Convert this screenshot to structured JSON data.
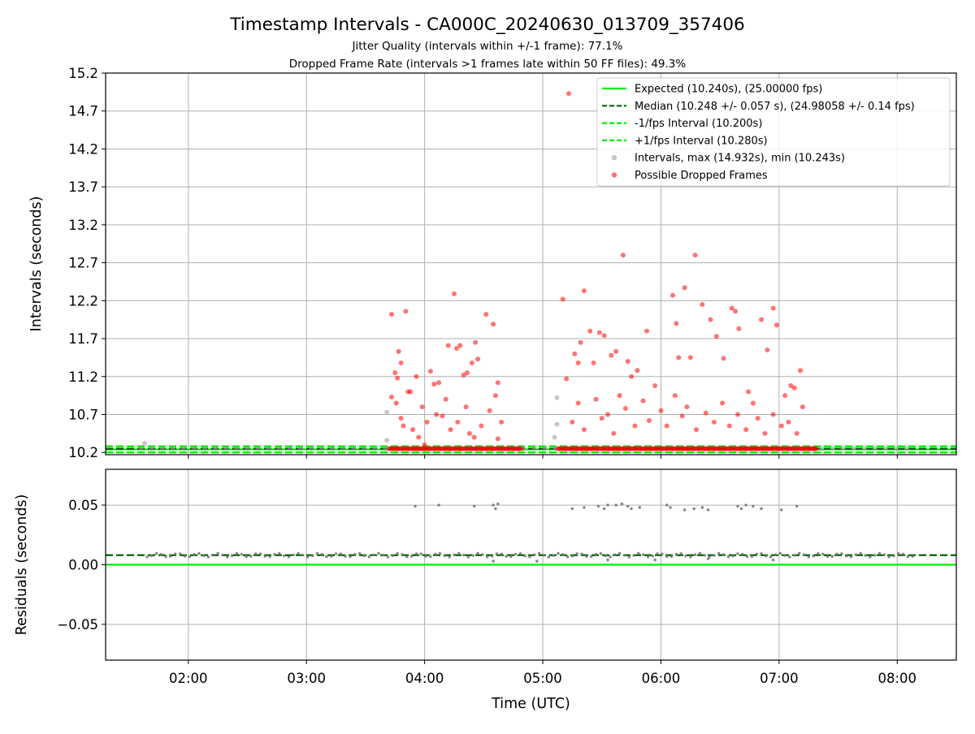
{
  "chart_data": [
    {
      "type": "scatter",
      "title": "Timestamp Intervals - CA000C_20240630_013709_357406",
      "subtitle_lines": [
        "Jitter Quality (intervals within +/-1 frame): 77.1%",
        "Dropped Frame Rate (intervals >1 frames late within 50 FF files): 49.3%"
      ],
      "xlabel": "",
      "ylabel": "Intervals (seconds)",
      "x_unit": "time (UTC, decimal hours)",
      "xlim": [
        1.3,
        8.5
      ],
      "ylim": [
        10.17,
        15.2
      ],
      "yticks": [
        10.2,
        10.7,
        11.2,
        11.7,
        12.2,
        12.7,
        13.2,
        13.7,
        14.2,
        14.7,
        15.2
      ],
      "ytick_labels": [
        "10.2",
        "10.7",
        "11.2",
        "11.7",
        "12.2",
        "12.7",
        "13.2",
        "13.7",
        "14.2",
        "14.7",
        "15.2"
      ],
      "xticks": [
        2,
        3,
        4,
        5,
        6,
        7,
        8
      ],
      "xtick_labels": [
        "02:00",
        "03:00",
        "04:00",
        "05:00",
        "06:00",
        "07:00",
        "08:00"
      ],
      "grid": true,
      "legend_position": "top-right",
      "reference_lines": [
        {
          "name": "Expected (10.240s), (25.00000 fps)",
          "value": 10.24,
          "color": "#00ee00",
          "style": "solid"
        },
        {
          "name": "Median (10.248 +/- 0.057 s), (24.98058 +/- 0.14 fps)",
          "value": 10.248,
          "color": "#006400",
          "style": "dashed"
        },
        {
          "name": "-1/fps Interval (10.200s)",
          "value": 10.2,
          "color": "#00ee00",
          "style": "dashed"
        },
        {
          "name": "+1/fps Interval (10.280s)",
          "value": 10.28,
          "color": "#00ee00",
          "style": "dashed"
        }
      ],
      "series": [
        {
          "name": "Intervals, max (14.932s), min (10.243s)",
          "color": "#999999",
          "baseline": {
            "value": 10.25,
            "x_range": [
              1.6,
              8.15
            ],
            "step": 0.09
          },
          "points": [
            [
              1.63,
              10.32
            ],
            [
              3.68,
              10.73
            ],
            [
              3.68,
              10.36
            ],
            [
              5.12,
              10.92
            ],
            [
              5.12,
              10.57
            ],
            [
              5.1,
              10.4
            ]
          ]
        },
        {
          "name": "Possible Dropped Frames",
          "color": "#ff0000",
          "bands": [
            [
              3.7,
              4.82
            ],
            [
              5.13,
              7.32
            ]
          ],
          "band_value": 10.25,
          "points": [
            [
              3.72,
              12.02
            ],
            [
              3.75,
              11.25
            ],
            [
              3.77,
              11.18
            ],
            [
              3.78,
              11.53
            ],
            [
              3.8,
              11.38
            ],
            [
              3.84,
              12.06
            ],
            [
              3.86,
              11.0
            ],
            [
              3.88,
              11.0
            ],
            [
              3.93,
              11.2
            ],
            [
              3.98,
              10.8
            ],
            [
              4.05,
              11.27
            ],
            [
              4.08,
              11.1
            ],
            [
              4.12,
              11.12
            ],
            [
              4.2,
              11.61
            ],
            [
              4.25,
              12.29
            ],
            [
              4.27,
              11.57
            ],
            [
              4.3,
              11.61
            ],
            [
              4.33,
              11.22
            ],
            [
              4.36,
              11.25
            ],
            [
              4.4,
              11.38
            ],
            [
              4.43,
              11.65
            ],
            [
              4.45,
              11.43
            ],
            [
              4.52,
              12.02
            ],
            [
              4.58,
              11.89
            ],
            [
              4.62,
              11.12
            ],
            [
              4.6,
              10.95
            ],
            [
              3.72,
              10.93
            ],
            [
              3.76,
              10.85
            ],
            [
              3.8,
              10.65
            ],
            [
              3.82,
              10.55
            ],
            [
              3.9,
              10.5
            ],
            [
              3.95,
              10.4
            ],
            [
              4.0,
              10.3
            ],
            [
              4.02,
              10.6
            ],
            [
              4.1,
              10.7
            ],
            [
              4.15,
              10.68
            ],
            [
              4.18,
              10.9
            ],
            [
              4.22,
              10.5
            ],
            [
              4.28,
              10.6
            ],
            [
              4.35,
              10.8
            ],
            [
              4.38,
              10.45
            ],
            [
              4.42,
              10.4
            ],
            [
              4.48,
              10.55
            ],
            [
              4.55,
              10.75
            ],
            [
              4.65,
              10.6
            ],
            [
              4.62,
              10.38
            ],
            [
              5.22,
              14.93
            ],
            [
              5.17,
              12.22
            ],
            [
              5.2,
              11.17
            ],
            [
              5.27,
              11.5
            ],
            [
              5.3,
              11.38
            ],
            [
              5.32,
              11.65
            ],
            [
              5.35,
              12.33
            ],
            [
              5.4,
              11.8
            ],
            [
              5.43,
              11.38
            ],
            [
              5.48,
              11.78
            ],
            [
              5.52,
              11.74
            ],
            [
              5.58,
              11.48
            ],
            [
              5.62,
              11.53
            ],
            [
              5.68,
              12.8
            ],
            [
              5.72,
              11.4
            ],
            [
              5.75,
              11.2
            ],
            [
              5.8,
              11.28
            ],
            [
              5.88,
              11.8
            ],
            [
              5.95,
              11.08
            ],
            [
              6.1,
              12.27
            ],
            [
              6.13,
              11.9
            ],
            [
              6.15,
              11.45
            ],
            [
              6.2,
              12.37
            ],
            [
              6.25,
              11.45
            ],
            [
              6.29,
              12.8
            ],
            [
              6.35,
              12.15
            ],
            [
              6.42,
              11.95
            ],
            [
              6.47,
              11.73
            ],
            [
              6.53,
              11.44
            ],
            [
              6.6,
              12.1
            ],
            [
              6.63,
              12.06
            ],
            [
              6.66,
              11.83
            ],
            [
              6.74,
              11.0
            ],
            [
              6.78,
              10.85
            ],
            [
              6.85,
              11.95
            ],
            [
              6.9,
              11.55
            ],
            [
              6.95,
              12.1
            ],
            [
              6.98,
              11.88
            ],
            [
              7.05,
              10.95
            ],
            [
              7.1,
              11.08
            ],
            [
              7.13,
              11.05
            ],
            [
              7.18,
              11.28
            ],
            [
              7.2,
              10.8
            ],
            [
              5.25,
              10.6
            ],
            [
              5.3,
              10.85
            ],
            [
              5.35,
              10.5
            ],
            [
              5.45,
              10.9
            ],
            [
              5.5,
              10.65
            ],
            [
              5.55,
              10.7
            ],
            [
              5.6,
              10.45
            ],
            [
              5.65,
              10.95
            ],
            [
              5.7,
              10.78
            ],
            [
              5.78,
              10.55
            ],
            [
              5.85,
              10.88
            ],
            [
              5.9,
              10.62
            ],
            [
              6.0,
              10.75
            ],
            [
              6.05,
              10.55
            ],
            [
              6.12,
              10.95
            ],
            [
              6.18,
              10.68
            ],
            [
              6.22,
              10.8
            ],
            [
              6.3,
              10.5
            ],
            [
              6.38,
              10.72
            ],
            [
              6.45,
              10.6
            ],
            [
              6.52,
              10.85
            ],
            [
              6.58,
              10.55
            ],
            [
              6.65,
              10.7
            ],
            [
              6.72,
              10.5
            ],
            [
              6.82,
              10.65
            ],
            [
              6.88,
              10.45
            ],
            [
              6.95,
              10.7
            ],
            [
              7.02,
              10.55
            ],
            [
              7.08,
              10.6
            ],
            [
              7.15,
              10.45
            ]
          ]
        }
      ]
    },
    {
      "type": "scatter",
      "title": "",
      "xlabel": "Time (UTC)",
      "ylabel": "Residuals (seconds)",
      "x_unit": "time (UTC, decimal hours)",
      "xlim": [
        1.3,
        8.5
      ],
      "ylim": [
        -0.08,
        0.08
      ],
      "yticks": [
        -0.05,
        0.0,
        0.05
      ],
      "ytick_labels": [
        "−0.05",
        "0.00",
        "0.05"
      ],
      "xticks": [
        2,
        3,
        4,
        5,
        6,
        7,
        8
      ],
      "xtick_labels": [
        "02:00",
        "03:00",
        "04:00",
        "05:00",
        "06:00",
        "07:00",
        "08:00"
      ],
      "grid": true,
      "reference_lines": [
        {
          "name": "",
          "value": 0.0,
          "color": "#00ee00",
          "style": "solid"
        },
        {
          "name": "",
          "value": 0.008,
          "color": "#006400",
          "style": "dashed"
        }
      ],
      "series": [
        {
          "name": "",
          "color": "#777777",
          "baseline": {
            "value": 0.008,
            "x_range": [
              1.65,
              8.15
            ],
            "step": 0.04
          },
          "points": [
            [
              3.92,
              0.049
            ],
            [
              4.12,
              0.05
            ],
            [
              4.42,
              0.049
            ],
            [
              4.58,
              0.05
            ],
            [
              4.6,
              0.047
            ],
            [
              4.62,
              0.051
            ],
            [
              5.25,
              0.047
            ],
            [
              5.35,
              0.048
            ],
            [
              5.47,
              0.049
            ],
            [
              5.52,
              0.047
            ],
            [
              5.55,
              0.05
            ],
            [
              5.62,
              0.05
            ],
            [
              5.67,
              0.051
            ],
            [
              5.72,
              0.049
            ],
            [
              5.75,
              0.047
            ],
            [
              5.82,
              0.048
            ],
            [
              6.05,
              0.05
            ],
            [
              6.08,
              0.048
            ],
            [
              6.2,
              0.046
            ],
            [
              6.28,
              0.047
            ],
            [
              6.35,
              0.048
            ],
            [
              6.4,
              0.046
            ],
            [
              6.65,
              0.049
            ],
            [
              6.68,
              0.047
            ],
            [
              6.72,
              0.05
            ],
            [
              6.78,
              0.049
            ],
            [
              6.85,
              0.047
            ],
            [
              7.02,
              0.046
            ],
            [
              7.15,
              0.049
            ],
            [
              4.58,
              0.003
            ],
            [
              4.95,
              0.003
            ],
            [
              5.55,
              0.004
            ],
            [
              5.95,
              0.004
            ],
            [
              6.4,
              0.005
            ],
            [
              6.95,
              0.004
            ]
          ]
        }
      ]
    }
  ]
}
